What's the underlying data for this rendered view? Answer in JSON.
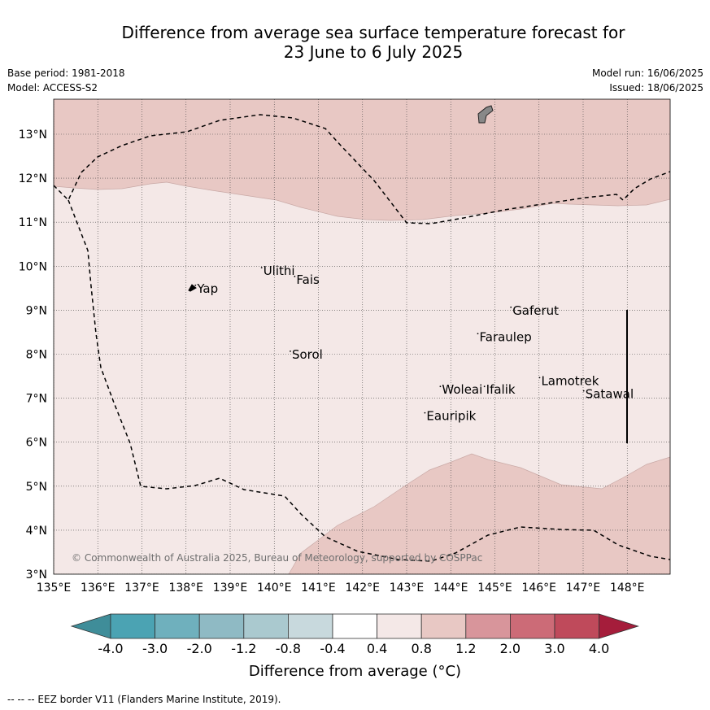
{
  "title_line1": "Difference from average sea surface temperature forecast for",
  "title_line2": "23 June to 6 July 2025",
  "meta": {
    "base_period": "Base period: 1981-2018",
    "model": "Model: ACCESS-S2",
    "model_run": "Model run: 16/06/2025",
    "issued": "Issued: 18/06/2025"
  },
  "map": {
    "lon_range": [
      135,
      149
    ],
    "lat_range": [
      3,
      13.8
    ],
    "lon_ticks": [
      "135°E",
      "136°E",
      "137°E",
      "138°E",
      "139°E",
      "140°E",
      "141°E",
      "142°E",
      "143°E",
      "144°E",
      "145°E",
      "146°E",
      "147°E",
      "148°E"
    ],
    "lat_ticks": [
      "3°N",
      "4°N",
      "5°N",
      "6°N",
      "7°N",
      "8°N",
      "9°N",
      "10°N",
      "11°N",
      "12°N",
      "13°N"
    ],
    "grid": true,
    "background_color": "#f4e8e7",
    "warm_color": "#e8c8c4",
    "copyright": "© Commonwealth of Australia 2025, Bureau of Meteorology, supported by COSPPac",
    "places": [
      {
        "name": "Ulithi",
        "lon": 139.75,
        "lat": 9.8
      },
      {
        "name": "Fais",
        "lon": 140.5,
        "lat": 9.6
      },
      {
        "name": "Yap",
        "lon": 138.25,
        "lat": 9.4
      },
      {
        "name": "Gaferut",
        "lon": 145.4,
        "lat": 8.9
      },
      {
        "name": "Faraulep",
        "lon": 144.65,
        "lat": 8.3
      },
      {
        "name": "Sorol",
        "lon": 140.4,
        "lat": 7.9
      },
      {
        "name": "Lamotrek",
        "lon": 146.05,
        "lat": 7.3
      },
      {
        "name": "Woleai",
        "lon": 143.8,
        "lat": 7.1
      },
      {
        "name": "Ifalik",
        "lon": 144.8,
        "lat": 7.1
      },
      {
        "name": "Satawal",
        "lon": 147.05,
        "lat": 7.0
      },
      {
        "name": "Eauripik",
        "lon": 143.45,
        "lat": 6.5
      }
    ]
  },
  "colorbar": {
    "title": "Difference from average (°C)",
    "labels": [
      "-4.0",
      "-3.0",
      "-2.0",
      "-1.2",
      "-0.8",
      "-0.4",
      "0.4",
      "0.8",
      "1.2",
      "2.0",
      "3.0",
      "4.0"
    ],
    "colors": [
      "#3f8d99",
      "#4ba3b3",
      "#6fb0bd",
      "#8fbac4",
      "#aac9cf",
      "#c8d9dd",
      "#ffffff",
      "#f4e8e7",
      "#e8c8c4",
      "#d8959b",
      "#cc6b77",
      "#bf4a5b",
      "#a51d3b"
    ]
  },
  "footnote": "--  --  -- EEZ border V11 (Flanders Marine Institute, 2019)."
}
